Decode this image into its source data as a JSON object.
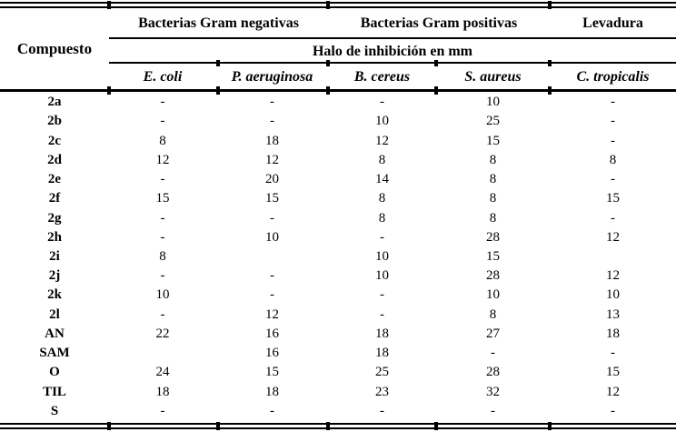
{
  "table": {
    "compound_header": "Compuesto",
    "group_headers": [
      {
        "label": "Bacterias Gram negativas"
      },
      {
        "label": "Bacterias Gram positivas"
      },
      {
        "label": "Levadura"
      }
    ],
    "subheader": "Halo de inhibición en mm",
    "columns": [
      "E. coli",
      "P. aeruginosa",
      "B. cereus",
      "S. aureus",
      "C. tropicalis"
    ],
    "rows": [
      {
        "compound": "2a",
        "values": [
          "-",
          "-",
          "-",
          "10",
          "-"
        ]
      },
      {
        "compound": "2b",
        "values": [
          "-",
          "-",
          "10",
          "25",
          "-"
        ]
      },
      {
        "compound": "2c",
        "values": [
          "8",
          "18",
          "12",
          "15",
          "-"
        ]
      },
      {
        "compound": "2d",
        "values": [
          "12",
          "12",
          "8",
          "8",
          "8"
        ]
      },
      {
        "compound": "2e",
        "values": [
          "-",
          "20",
          "14",
          "8",
          "-"
        ]
      },
      {
        "compound": "2f",
        "values": [
          "15",
          "15",
          "8",
          "8",
          "15"
        ]
      },
      {
        "compound": "2g",
        "values": [
          "-",
          "-",
          "8",
          "8",
          "-"
        ]
      },
      {
        "compound": "2h",
        "values": [
          "-",
          "10",
          "-",
          "28",
          "12"
        ]
      },
      {
        "compound": "2i",
        "values": [
          "8",
          "",
          "10",
          "15",
          ""
        ]
      },
      {
        "compound": "2j",
        "values": [
          "-",
          "-",
          "10",
          "28",
          "12"
        ]
      },
      {
        "compound": "2k",
        "values": [
          "10",
          "-",
          "-",
          "10",
          "10"
        ]
      },
      {
        "compound": "2l",
        "values": [
          "-",
          "12",
          "-",
          "8",
          "13"
        ]
      },
      {
        "compound": "AN",
        "values": [
          "22",
          "16",
          "18",
          "27",
          "18"
        ]
      },
      {
        "compound": "SAM",
        "values": [
          "",
          "16",
          "18",
          "-",
          "-"
        ]
      },
      {
        "compound": "O",
        "values": [
          "24",
          "15",
          "25",
          "28",
          "15"
        ]
      },
      {
        "compound": "TIL",
        "values": [
          "18",
          "18",
          "23",
          "32",
          "12"
        ]
      },
      {
        "compound": "S",
        "values": [
          "-",
          "-",
          "-",
          "-",
          "-"
        ]
      }
    ],
    "colors": {
      "text": "#000000",
      "background": "#ffffff",
      "line": "#000000"
    }
  }
}
